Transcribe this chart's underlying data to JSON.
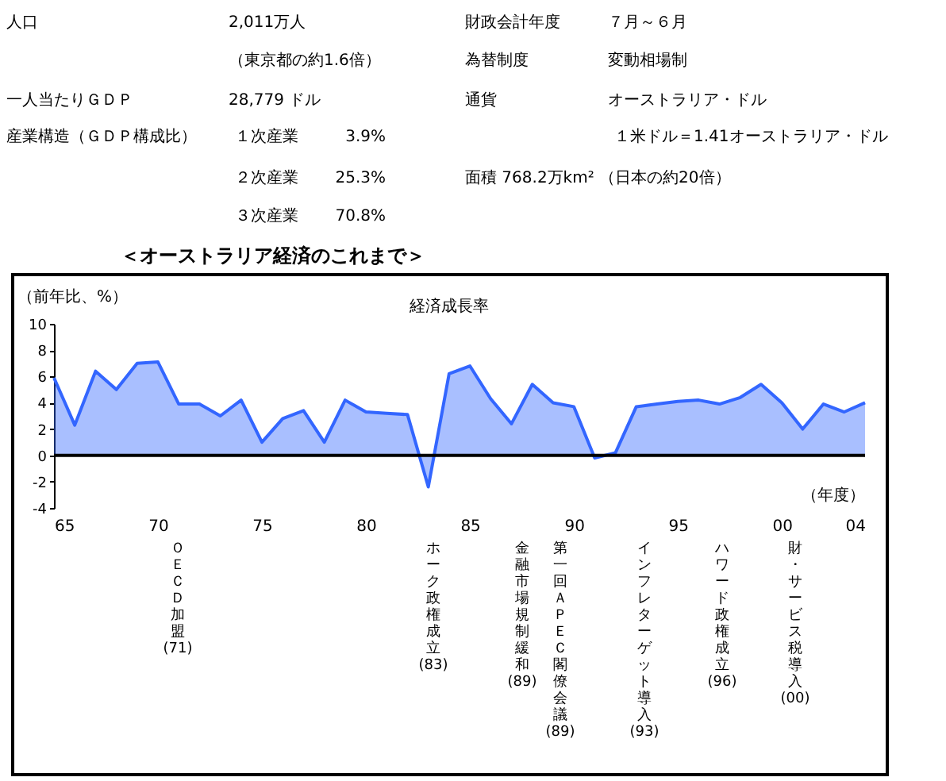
{
  "chart_data": [
    {
      "type": "other",
      "annotations": [
        "人口",
        "2,011万人",
        "（東京都の約1.6倍）",
        "財政会計年度",
        "７月～６月",
        "為替制度",
        "変動相場制",
        "一人当たりＧＤＰ",
        "28,779 ドル",
        "通貨",
        "オーストラリア・ドル",
        "産業構造（ＧＤＰ構成比）",
        "１次産業",
        "3.9%",
        "１米ドル＝1.41オーストラリア・ドル",
        "２次産業",
        "25.3%",
        "面積 768.2万km² （日本の約20倍）",
        "３次産業",
        "70.8%"
      ]
    },
    {
      "type": "area",
      "title": "＜オーストラリア経済のこれまで＞",
      "subtitle": "経済成長率",
      "ylabel": "（前年比、%）",
      "xlabel": "（年度）",
      "x": [
        1965,
        1966,
        1967,
        1968,
        1969,
        1970,
        1971,
        1972,
        1973,
        1974,
        1975,
        1976,
        1977,
        1978,
        1979,
        1980,
        1981,
        1982,
        1983,
        1984,
        1985,
        1986,
        1987,
        1988,
        1989,
        1990,
        1991,
        1992,
        1993,
        1994,
        1995,
        1996,
        1997,
        1998,
        1999,
        2000,
        2001,
        2002,
        2003,
        2004
      ],
      "series": [
        {
          "color": "#3366ff",
          "values": [
            5.9,
            2.3,
            6.4,
            5.0,
            7.0,
            7.1,
            3.9,
            3.9,
            3.0,
            4.2,
            1.0,
            2.8,
            3.4,
            1.0,
            4.2,
            3.3,
            3.2,
            3.1,
            -2.4,
            6.2,
            6.8,
            4.3,
            2.4,
            5.4,
            4.0,
            3.7,
            -0.2,
            0.2,
            3.7,
            3.9,
            4.1,
            4.2,
            3.9,
            4.4,
            5.4,
            4.0,
            2.0,
            3.9,
            3.3,
            4.0
          ]
        }
      ],
      "xlim": [
        1965,
        2004
      ],
      "xticks": [
        {
          "value": 1965,
          "label": "65"
        },
        {
          "value": 1970,
          "label": "70"
        },
        {
          "value": 1975,
          "label": "75"
        },
        {
          "value": 1980,
          "label": "80"
        },
        {
          "value": 1985,
          "label": "85"
        },
        {
          "value": 1990,
          "label": "90"
        },
        {
          "value": 1995,
          "label": "95"
        },
        {
          "value": 2000,
          "label": "00"
        },
        {
          "value": 2004,
          "label": "04"
        }
      ],
      "ylim": [
        -4,
        10
      ],
      "yticks": [
        -4,
        -2,
        0,
        2,
        4,
        6,
        8,
        10
      ],
      "grid": false,
      "ref_lines": [
        {
          "axis": "y",
          "value": 0,
          "color": "#000000"
        }
      ],
      "annotations": [
        "ＯＥＣＤ加盟(71)",
        "ホーク政権成立(83)",
        "金融市場規制緩和(89)",
        "第一回ＡＰＥＣ閣僚会議(89)",
        "インフレターゲット導入(93)",
        "ハワード政権成立(96)",
        "財・サービス税導入(00)"
      ]
    }
  ]
}
